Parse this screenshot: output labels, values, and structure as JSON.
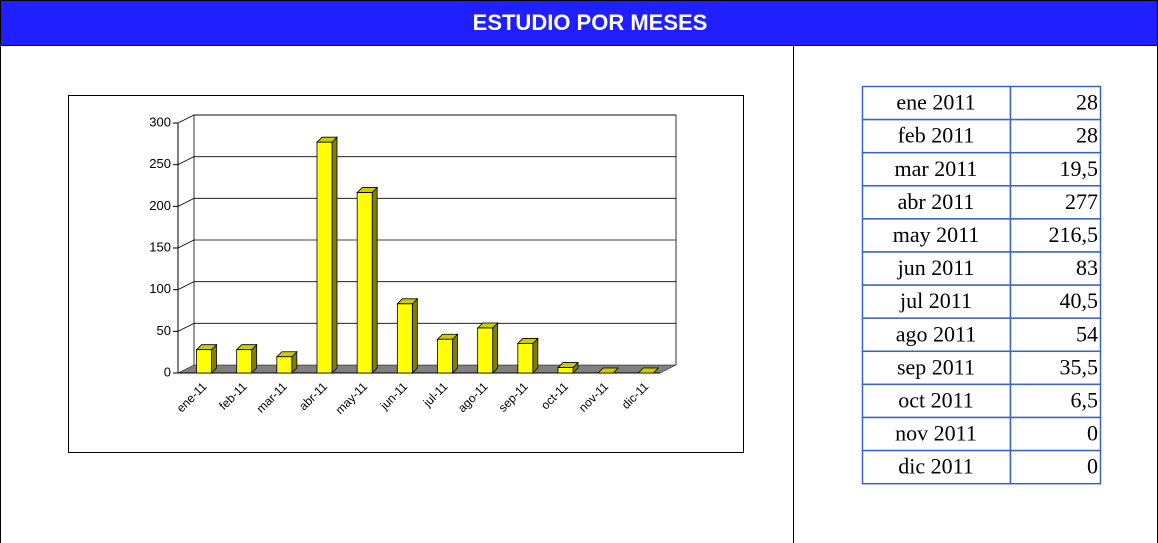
{
  "header": {
    "title": "ESTUDIO POR MESES"
  },
  "chart_data": {
    "type": "bar",
    "categories": [
      "ene-11",
      "feb-11",
      "mar-11",
      "abr-11",
      "may-11",
      "jun-11",
      "jul-11",
      "ago-11",
      "sep-11",
      "oct-11",
      "nov-11",
      "dic-11"
    ],
    "values": [
      28,
      28,
      19.5,
      277,
      216.5,
      83,
      40.5,
      54,
      35.5,
      6.5,
      0,
      0
    ],
    "color": "#ffff00",
    "ylim": [
      0,
      300
    ],
    "yticks": [
      0,
      50,
      100,
      150,
      200,
      250,
      300
    ],
    "grid": true
  },
  "table": {
    "rows": [
      [
        "ene 2011",
        "28"
      ],
      [
        "feb 2011",
        "28"
      ],
      [
        "mar 2011",
        "19,5"
      ],
      [
        "abr 2011",
        "277"
      ],
      [
        "may 2011",
        "216,5"
      ],
      [
        "jun 2011",
        "83"
      ],
      [
        "jul 2011",
        "40,5"
      ],
      [
        "ago 2011",
        "54"
      ],
      [
        "sep 2011",
        "35,5"
      ],
      [
        "oct 2011",
        "6,5"
      ],
      [
        "nov 2011",
        "0"
      ],
      [
        "dic 2011",
        "0"
      ]
    ]
  }
}
